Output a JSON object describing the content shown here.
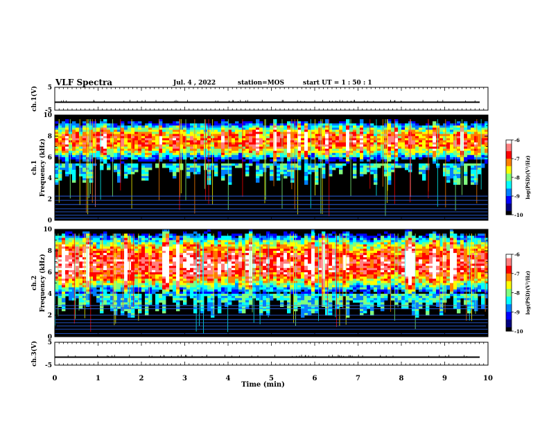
{
  "header": {
    "title": "VLF Spectra",
    "date": "Jul. 4 , 2022",
    "station": "station=MOS",
    "start_ut": "start UT = 1 : 50 : 1"
  },
  "colors": {
    "colormap": [
      "#000000",
      "#00007f",
      "#0000ff",
      "#007fff",
      "#00ffff",
      "#7fff7f",
      "#ffff00",
      "#ff7f00",
      "#ff0000",
      "#ff7f7f",
      "#ffffff"
    ],
    "background": "#000000",
    "trace": "#000000"
  },
  "chart_data": [
    {
      "type": "line",
      "panel": "channel-1-waveform",
      "ylabel": "ch.1(V)",
      "ylim": [
        -5,
        5
      ],
      "yticks": [
        "5",
        "-5"
      ],
      "xlim": [
        0,
        10
      ],
      "series": [
        {
          "x": [
            0,
            10
          ],
          "values": [
            -1.5,
            -1.5
          ]
        }
      ]
    },
    {
      "type": "heatmap",
      "panel": "channel-1-spectrogram",
      "ylabel": [
        "ch.1",
        "Frequency (kHz)"
      ],
      "xlim": [
        0,
        10
      ],
      "ylim": [
        0,
        10
      ],
      "yticks": [
        "0",
        "2",
        "4",
        "6",
        "8",
        "10"
      ],
      "band_khz": [
        5.5,
        9.5
      ],
      "band_peak_khz": 7.5,
      "band_peak_log_psd": -7.0,
      "background_log_psd": -10,
      "narrowband_lines_khz": [
        0.2,
        0.5,
        0.8,
        1.1,
        1.5,
        1.9,
        2.3
      ],
      "colorbar": {
        "label": "log(PSD)(V²/Hz)",
        "min": -10,
        "max": -6,
        "ticks": [
          "-6",
          "-7",
          "-8",
          "-9",
          "-10"
        ]
      }
    },
    {
      "type": "heatmap",
      "panel": "channel-2-spectrogram",
      "ylabel": [
        "ch.2",
        "Frequency (kHz)"
      ],
      "xlim": [
        0,
        10
      ],
      "ylim": [
        0,
        10
      ],
      "yticks": [
        "0",
        "2",
        "4",
        "6",
        "8",
        "10"
      ],
      "band_khz": [
        4.0,
        9.8
      ],
      "band_peak_khz": 6.8,
      "band_peak_log_psd": -6.5,
      "background_log_psd": -10,
      "narrowband_lines_khz": [
        0.3,
        0.7,
        1.0,
        1.3,
        1.6,
        2.0,
        2.6,
        2.9
      ],
      "colorbar": {
        "label": "log(PSD)(V²/Hz)",
        "min": -10,
        "max": -6,
        "ticks": [
          "-6",
          "-7",
          "-8",
          "-9",
          "-10"
        ]
      }
    },
    {
      "type": "line",
      "panel": "channel-3-waveform",
      "ylabel": "ch.3(V)",
      "ylim": [
        -5,
        5
      ],
      "yticks": [
        "5",
        "-5"
      ],
      "xlim": [
        0,
        10
      ],
      "series": [
        {
          "x": [
            0,
            10
          ],
          "values": [
            -1.5,
            -1.5
          ]
        }
      ]
    }
  ],
  "xaxis": {
    "label": "Time (min)",
    "ticks": [
      "0",
      "1",
      "2",
      "3",
      "4",
      "5",
      "6",
      "7",
      "8",
      "9",
      "10"
    ]
  }
}
